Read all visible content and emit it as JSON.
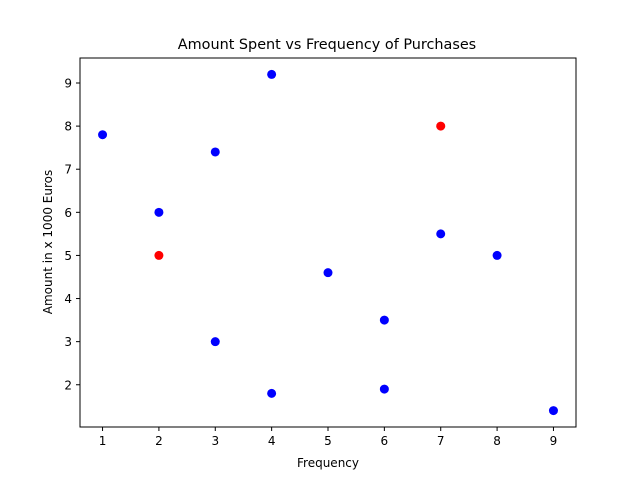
{
  "chart_data": {
    "type": "scatter",
    "title": "Amount Spent vs Frequency of Purchases",
    "xlabel": "Frequency",
    "ylabel": "Amount in x 1000 Euros",
    "xlim": [
      0.6,
      9.4
    ],
    "ylim": [
      1.02,
      9.58
    ],
    "xticks": [
      1,
      2,
      3,
      4,
      5,
      6,
      7,
      8,
      9
    ],
    "yticks": [
      2,
      3,
      4,
      5,
      6,
      7,
      8,
      9
    ],
    "grid": false,
    "colors": {
      "blue": "#0000ff",
      "red": "#ff0000"
    },
    "points": [
      {
        "x": 1,
        "y": 7.8,
        "color": "blue"
      },
      {
        "x": 2,
        "y": 6.0,
        "color": "blue"
      },
      {
        "x": 2,
        "y": 5.0,
        "color": "red"
      },
      {
        "x": 3,
        "y": 7.4,
        "color": "blue"
      },
      {
        "x": 3,
        "y": 3.0,
        "color": "blue"
      },
      {
        "x": 4,
        "y": 9.2,
        "color": "blue"
      },
      {
        "x": 4,
        "y": 1.8,
        "color": "blue"
      },
      {
        "x": 5,
        "y": 4.6,
        "color": "blue"
      },
      {
        "x": 6,
        "y": 3.5,
        "color": "blue"
      },
      {
        "x": 6,
        "y": 1.9,
        "color": "blue"
      },
      {
        "x": 7,
        "y": 5.5,
        "color": "blue"
      },
      {
        "x": 7,
        "y": 8.0,
        "color": "red"
      },
      {
        "x": 8,
        "y": 5.0,
        "color": "blue"
      },
      {
        "x": 9,
        "y": 1.4,
        "color": "blue"
      }
    ]
  }
}
